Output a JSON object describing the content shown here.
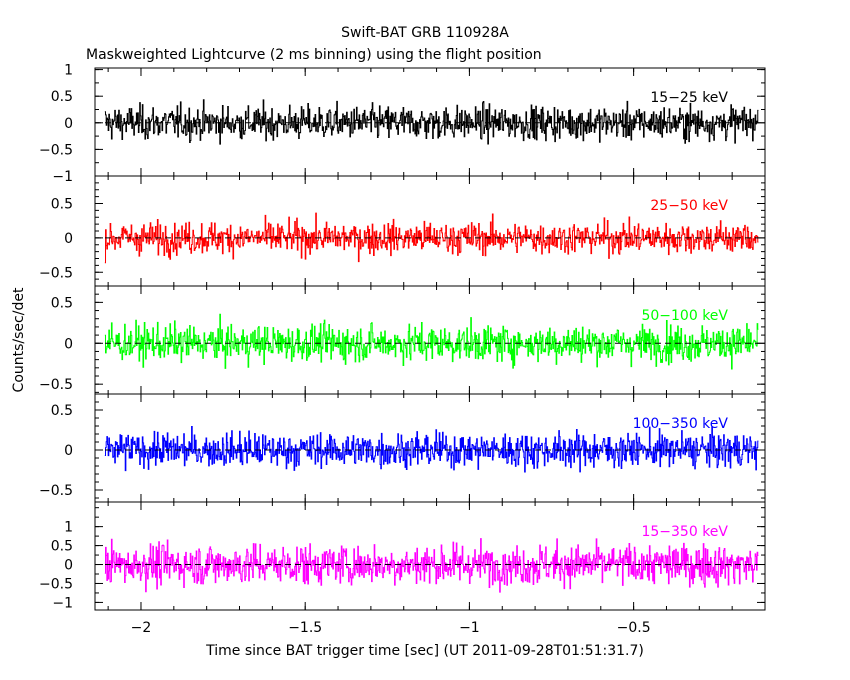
{
  "chart_data": {
    "type": "line",
    "title": "Swift-BAT GRB 110928A",
    "subtitle": "Maskweighted Lightcurve (2 ms binning) using the flight position",
    "xlabel": "Time since BAT trigger time [sec] (UT 2011-09-28T01:51:31.7)",
    "ylabel": "Counts/sec/det",
    "xlim": [
      -2.14,
      -0.1
    ],
    "x_ticks": [
      -2,
      -1.5,
      -1,
      -0.5
    ],
    "x_tick_labels": [
      "−2",
      "−1.5",
      "−1",
      "−0.5"
    ],
    "x_data_range": [
      -2.11,
      -0.12
    ],
    "grid": false,
    "panels": [
      {
        "name": "15-25 keV",
        "label": "15−25 keV",
        "color": "#000000",
        "ylim": [
          -1.0,
          1.03
        ],
        "yticks": [
          1,
          0.5,
          0,
          -0.5,
          -1
        ],
        "ytick_labels": [
          "1",
          "0.5",
          "0",
          "−0.5",
          "−1"
        ],
        "amplitude": 0.85
      },
      {
        "name": "25-50 keV",
        "label": "25−50 keV",
        "color": "#ff0000",
        "ylim": [
          -0.7,
          0.9
        ],
        "yticks": [
          0.5,
          0,
          -0.5
        ],
        "ytick_labels": [
          "0.5",
          "0",
          "−0.5"
        ],
        "amplitude": 0.62
      },
      {
        "name": "50-100 keV",
        "label": "50−100 keV",
        "color": "#00ff00",
        "ylim": [
          -0.62,
          0.7
        ],
        "yticks": [
          0.5,
          0,
          -0.5
        ],
        "ytick_labels": [
          "0.5",
          "0",
          "−0.5"
        ],
        "amplitude": 0.6
      },
      {
        "name": "100-350 keV",
        "label": "100−350 keV",
        "color": "#0000ff",
        "ylim": [
          -0.65,
          0.7
        ],
        "yticks": [
          0.5,
          0,
          -0.5
        ],
        "ytick_labels": [
          "0.5",
          "0",
          "−0.5"
        ],
        "amplitude": 0.58
      },
      {
        "name": "15-350 keV",
        "label": "15−350 keV",
        "color": "#ff00ff",
        "ylim": [
          -1.2,
          1.65
        ],
        "yticks": [
          1,
          0.5,
          0,
          -0.5,
          -1
        ],
        "ytick_labels": [
          "1",
          "0.5",
          "0",
          "−0.5",
          "−1"
        ],
        "amplitude": 1.45
      }
    ]
  }
}
